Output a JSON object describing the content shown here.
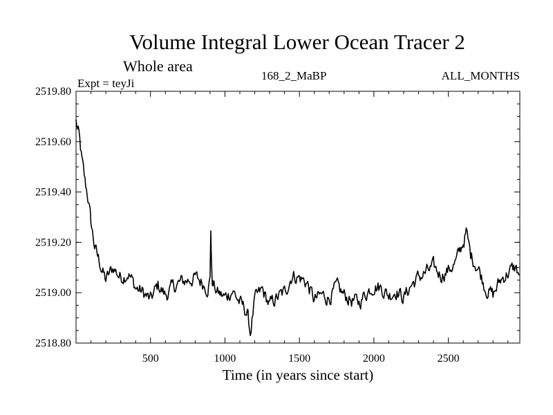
{
  "chart_data": {
    "type": "line",
    "title": "Volume Integral Lower Ocean Tracer 2",
    "subtitle": "Whole area",
    "experiment_label": "Expt = teyJi",
    "period_label": "168_2_MaBP",
    "months_label": "ALL_MONTHS",
    "xlabel": "Time (in years since start)",
    "ylabel": "",
    "xlim": [
      0,
      2980
    ],
    "ylim": [
      2518.8,
      2519.8
    ],
    "x_ticks": [
      500,
      1000,
      1500,
      2000,
      2500
    ],
    "x_tick_labels": [
      "500",
      "1000",
      "1500",
      "2000",
      "2500"
    ],
    "y_ticks": [
      2518.8,
      2519.0,
      2519.2,
      2519.4,
      2519.6,
      2519.8
    ],
    "y_tick_labels": [
      "2518.80",
      "2519.00",
      "2519.20",
      "2519.40",
      "2519.60",
      "2519.80"
    ],
    "grid": false,
    "series": [
      {
        "name": "Volume Integral Lower Ocean Tracer 2",
        "x": [
          0,
          20,
          40,
          60,
          80,
          100,
          120,
          140,
          160,
          180,
          200,
          250,
          300,
          350,
          400,
          450,
          500,
          550,
          600,
          650,
          700,
          750,
          800,
          850,
          880,
          900,
          905,
          910,
          915,
          920,
          950,
          1000,
          1050,
          1100,
          1150,
          1170,
          1200,
          1250,
          1300,
          1350,
          1400,
          1450,
          1500,
          1550,
          1600,
          1650,
          1700,
          1750,
          1800,
          1850,
          1900,
          1950,
          2000,
          2050,
          2100,
          2150,
          2200,
          2250,
          2300,
          2350,
          2400,
          2450,
          2500,
          2550,
          2600,
          2620,
          2650,
          2700,
          2750,
          2800,
          2850,
          2900,
          2950,
          2980
        ],
        "y": [
          2519.68,
          2519.62,
          2519.52,
          2519.44,
          2519.38,
          2519.28,
          2519.2,
          2519.15,
          2519.12,
          2519.08,
          2519.05,
          2519.1,
          2519.06,
          2519.08,
          2519.02,
          2519.0,
          2518.97,
          2519.03,
          2518.99,
          2519.02,
          2519.04,
          2519.05,
          2519.06,
          2519.04,
          2519.02,
          2519.05,
          2519.26,
          2519.1,
          2519.05,
          2519.03,
          2519.0,
          2518.98,
          2519.01,
          2518.96,
          2518.92,
          2518.84,
          2518.97,
          2519.01,
          2518.95,
          2518.98,
          2519.0,
          2519.07,
          2519.06,
          2519.04,
          2518.97,
          2518.99,
          2518.98,
          2519.02,
          2518.99,
          2518.97,
          2518.96,
          2519.0,
          2519.03,
          2519.02,
          2518.99,
          2519.01,
          2518.98,
          2519.03,
          2519.06,
          2519.08,
          2519.1,
          2519.07,
          2519.09,
          2519.12,
          2519.2,
          2519.24,
          2519.15,
          2519.1,
          2519.02,
          2518.99,
          2519.05,
          2519.08,
          2519.1,
          2519.07
        ]
      }
    ]
  }
}
